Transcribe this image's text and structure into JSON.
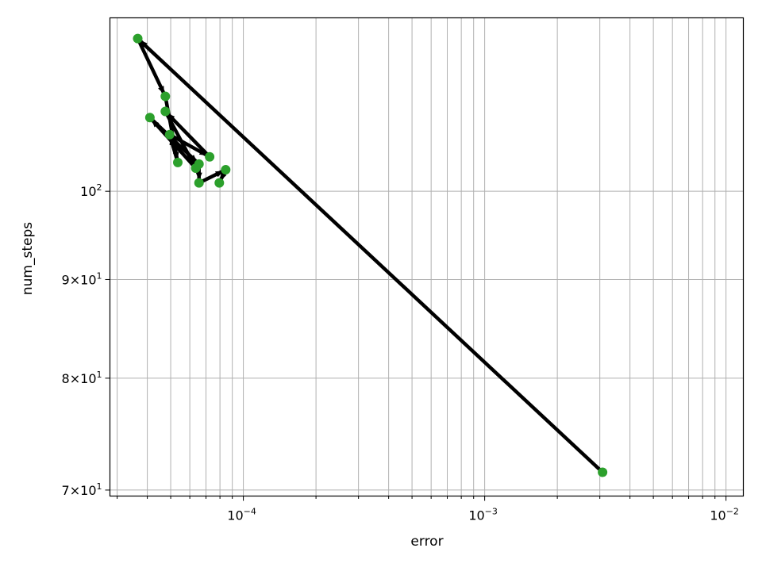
{
  "chart_data": {
    "type": "scatter",
    "title": "",
    "xlabel": "error",
    "ylabel": "num_steps",
    "xscale": "log",
    "yscale": "log",
    "xlim": [
      2.8e-05,
      0.0118
    ],
    "ylim": [
      69.5,
      123
    ],
    "grid": true,
    "grid_scope": "major and minor x ticks, major and minor y ticks",
    "marker_color": "#2ca02c",
    "arrow_color": "#000000",
    "arrows_connect_points_in_order": true,
    "x_major_ticks": [
      {
        "value": 0.0001,
        "base": "10",
        "exp": "−4"
      },
      {
        "value": 0.001,
        "base": "10",
        "exp": "−3"
      },
      {
        "value": 0.01,
        "base": "10",
        "exp": "−2"
      }
    ],
    "y_ticks": [
      {
        "value": 70,
        "mant": "7",
        "base": "10",
        "exp": "1"
      },
      {
        "value": 80,
        "mant": "8",
        "base": "10",
        "exp": "1"
      },
      {
        "value": 90,
        "mant": "9",
        "base": "10",
        "exp": "1"
      },
      {
        "value": 100,
        "mant": "",
        "base": "10",
        "exp": "2"
      }
    ],
    "points": [
      {
        "x": 0.00308,
        "y": 71.5
      },
      {
        "x": 3.65e-05,
        "y": 120.0
      },
      {
        "x": 4.75e-05,
        "y": 112.0
      },
      {
        "x": 5.35e-05,
        "y": 103.5
      },
      {
        "x": 4.95e-05,
        "y": 107.0
      },
      {
        "x": 7.25e-05,
        "y": 104.2
      },
      {
        "x": 4.75e-05,
        "y": 110.0
      },
      {
        "x": 6.35e-05,
        "y": 102.8
      },
      {
        "x": 4.1e-05,
        "y": 109.2
      },
      {
        "x": 6.55e-05,
        "y": 103.3
      },
      {
        "x": 6.55e-05,
        "y": 101.0
      },
      {
        "x": 8.45e-05,
        "y": 102.6
      },
      {
        "x": 7.95e-05,
        "y": 101.0
      }
    ]
  }
}
